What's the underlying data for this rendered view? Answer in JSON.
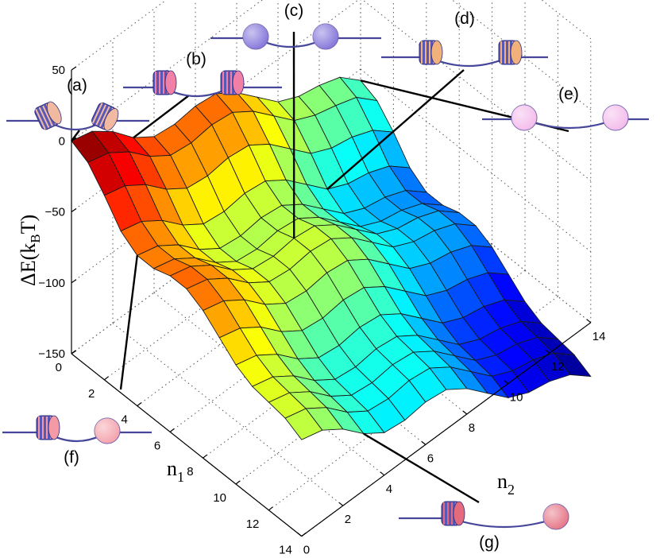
{
  "chart_data": {
    "type": "surface",
    "xlabel": "n",
    "xlabel_sub": "1",
    "ylabel": "n",
    "ylabel_sub": "2",
    "zlabel": "ΔE(k",
    "zlabel_sub": "B",
    "zlabel_tail": "T)",
    "xlim": [
      0,
      14
    ],
    "ylim": [
      0,
      14
    ],
    "zlim": [
      -150,
      50
    ],
    "x_ticks": [
      "0",
      "2",
      "4",
      "6",
      "8",
      "10",
      "12",
      "14"
    ],
    "y_ticks": [
      "0",
      "2",
      "4",
      "6",
      "8",
      "10",
      "12",
      "14"
    ],
    "z_ticks": [
      "50",
      "0",
      "-50",
      "-100",
      "-150"
    ],
    "colormap": "jet",
    "z_estimated": [
      [
        0,
        -4,
        -15,
        -30,
        -40,
        -42,
        -40,
        -42,
        -52,
        -66,
        -80,
        -87,
        -90,
        -95,
        -108
      ],
      [
        -6,
        -10,
        -20,
        -34,
        -44,
        -46,
        -44,
        -46,
        -56,
        -70,
        -84,
        -91,
        -95,
        -100,
        -113
      ],
      [
        -20,
        -24,
        -34,
        -48,
        -58,
        -60,
        -58,
        -60,
        -70,
        -84,
        -98,
        -105,
        -108,
        -114,
        -126
      ],
      [
        -36,
        -40,
        -50,
        -64,
        -74,
        -76,
        -74,
        -76,
        -86,
        -100,
        -114,
        -121,
        -124,
        -130,
        -142
      ],
      [
        -44,
        -48,
        -58,
        -72,
        -82,
        -84,
        -82,
        -84,
        -94,
        -108,
        -122,
        -129,
        -132,
        -138,
        -150
      ],
      [
        -44,
        -48,
        -58,
        -72,
        -82,
        -84,
        -82,
        -84,
        -94,
        -108,
        -122,
        -129,
        -132,
        -138,
        -150
      ],
      [
        -40,
        -44,
        -54,
        -68,
        -78,
        -80,
        -78,
        -80,
        -90,
        -104,
        -118,
        -125,
        -128,
        -134,
        -146
      ],
      [
        -40,
        -44,
        -54,
        -68,
        -78,
        -80,
        -78,
        -80,
        -90,
        -104,
        -118,
        -125,
        -128,
        -134,
        -146
      ],
      [
        -46,
        -50,
        -60,
        -74,
        -84,
        -86,
        -84,
        -86,
        -96,
        -110,
        -124,
        -131,
        -134,
        -140,
        -152
      ],
      [
        -56,
        -60,
        -70,
        -84,
        -94,
        -96,
        -94,
        -96,
        -106,
        -120,
        -134,
        -141,
        -144,
        -150,
        -162
      ],
      [
        -66,
        -70,
        -80,
        -94,
        -104,
        -106,
        -104,
        -106,
        -116,
        -130,
        -144,
        -151,
        -154,
        -160,
        -172
      ],
      [
        -72,
        -76,
        -86,
        -100,
        -110,
        -112,
        -110,
        -112,
        -122,
        -136,
        -150,
        -157,
        -160,
        -166,
        -178
      ],
      [
        -74,
        -78,
        -88,
        -102,
        -112,
        -114,
        -112,
        -114,
        -124,
        -138,
        -152,
        -159,
        -162,
        -168,
        -180
      ],
      [
        -76,
        -80,
        -90,
        -104,
        -114,
        -116,
        -114,
        -116,
        -126,
        -140,
        -154,
        -161,
        -164,
        -170,
        -182
      ],
      [
        -82,
        -86,
        -96,
        -110,
        -120,
        -122,
        -120,
        -122,
        -132,
        -146,
        -160,
        -167,
        -170,
        -176,
        -188
      ]
    ],
    "panels": [
      {
        "label": "(a)",
        "nuc_color": "#f0b9a0",
        "n1": 0,
        "n2": 0
      },
      {
        "label": "(b)",
        "nuc_color": "#f080a6",
        "n1": 0,
        "n2": 3
      },
      {
        "label": "(c)",
        "nuc_color": "#7a6bd8",
        "n1": 6,
        "n2": 6
      },
      {
        "label": "(d)",
        "nuc_color": "#f2b07a",
        "n1": 3,
        "n2": 10
      },
      {
        "label": "(e)",
        "nuc_color": "#f3b6ea",
        "n1": 0,
        "n2": 14
      },
      {
        "label": "(f)",
        "nuc_color": "#f39aa4",
        "n1": 4,
        "n2": 0
      },
      {
        "label": "(g)",
        "nuc_color": "#e46a7c",
        "n1": 14,
        "n2": 3
      }
    ]
  }
}
